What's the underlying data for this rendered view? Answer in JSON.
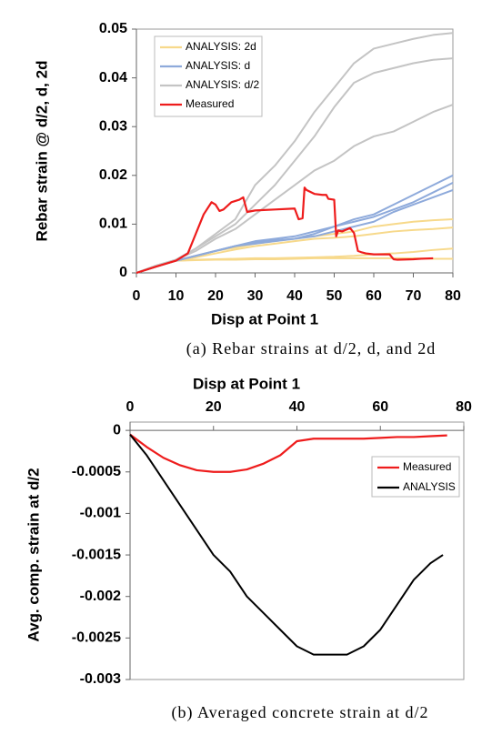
{
  "chart_data": [
    {
      "type": "line",
      "xlabel": "Disp at Point 1",
      "ylabel": "Rebar strain @ d/2, d, 2d",
      "caption": "(a) Rebar strains at d/2, d, and 2d",
      "xlim": [
        0,
        80
      ],
      "xticks": [
        0,
        10,
        20,
        30,
        40,
        50,
        60,
        70,
        80
      ],
      "ylim": [
        0,
        0.05
      ],
      "yticks": [
        0,
        0.01,
        0.02,
        0.03,
        0.04,
        0.05
      ],
      "xaxis_position": "bottom",
      "legend": "upper-left",
      "grid": false,
      "series": [
        {
          "name": "ANALYSIS: 2d",
          "color": "#f7d98b",
          "lines": [
            {
              "x": [
                0,
                5,
                10,
                15,
                20,
                25,
                30,
                35,
                40,
                45,
                50,
                55,
                60,
                65,
                70,
                75,
                80
              ],
              "values": [
                0,
                0.0013,
                0.0025,
                0.0035,
                0.0045,
                0.0052,
                0.006,
                0.0065,
                0.007,
                0.0075,
                0.008,
                0.0085,
                0.0095,
                0.01,
                0.0105,
                0.0108,
                0.011
              ]
            },
            {
              "x": [
                0,
                5,
                10,
                15,
                20,
                25,
                30,
                35,
                40,
                45,
                50,
                55,
                60,
                65,
                70,
                75,
                80
              ],
              "values": [
                0,
                0.0013,
                0.0025,
                0.0032,
                0.004,
                0.0048,
                0.0055,
                0.006,
                0.0065,
                0.007,
                0.0072,
                0.0075,
                0.008,
                0.0085,
                0.0088,
                0.009,
                0.0093
              ]
            },
            {
              "x": [
                0,
                5,
                10,
                15,
                20,
                25,
                30,
                35,
                40,
                45,
                50,
                55,
                60,
                65,
                70,
                75,
                80
              ],
              "values": [
                0,
                0.0013,
                0.0025,
                0.0027,
                0.0028,
                0.0029,
                0.003,
                0.003,
                0.0031,
                0.0032,
                0.0033,
                0.0035,
                0.0038,
                0.004,
                0.0043,
                0.0047,
                0.005
              ]
            },
            {
              "x": [
                0,
                5,
                10,
                15,
                20,
                25,
                30,
                35,
                40,
                45,
                50,
                55,
                60,
                65,
                70,
                75,
                80
              ],
              "values": [
                0,
                0.0013,
                0.0025,
                0.0026,
                0.0027,
                0.0027,
                0.0028,
                0.0028,
                0.0029,
                0.003,
                0.003,
                0.003,
                0.003,
                0.003,
                0.003,
                0.0029,
                0.0029
              ]
            }
          ]
        },
        {
          "name": "ANALYSIS: d",
          "color": "#8eaadb",
          "lines": [
            {
              "x": [
                0,
                5,
                10,
                15,
                20,
                25,
                30,
                35,
                40,
                45,
                50,
                55,
                60,
                65,
                70,
                75,
                80
              ],
              "values": [
                0,
                0.0013,
                0.0025,
                0.0035,
                0.0045,
                0.0055,
                0.006,
                0.0065,
                0.007,
                0.008,
                0.0095,
                0.011,
                0.012,
                0.014,
                0.016,
                0.018,
                0.02
              ]
            },
            {
              "x": [
                0,
                5,
                10,
                15,
                20,
                25,
                30,
                35,
                40,
                45,
                50,
                55,
                60,
                65,
                70,
                75,
                80
              ],
              "values": [
                0,
                0.0013,
                0.0025,
                0.0035,
                0.0045,
                0.0055,
                0.0065,
                0.007,
                0.0075,
                0.0085,
                0.0095,
                0.0105,
                0.0115,
                0.013,
                0.0145,
                0.0165,
                0.0185
              ]
            },
            {
              "x": [
                0,
                5,
                10,
                15,
                20,
                25,
                30,
                35,
                40,
                45,
                50,
                55,
                60,
                65,
                70,
                75,
                80
              ],
              "values": [
                0,
                0.0013,
                0.0025,
                0.0035,
                0.0045,
                0.0055,
                0.0062,
                0.0067,
                0.007,
                0.0075,
                0.0085,
                0.0095,
                0.0105,
                0.0125,
                0.014,
                0.0155,
                0.017
              ]
            }
          ]
        },
        {
          "name": "ANALYSIS: d/2",
          "color": "#c4c4c4",
          "lines": [
            {
              "x": [
                0,
                5,
                10,
                15,
                20,
                25,
                30,
                35,
                40,
                45,
                50,
                55,
                60,
                65,
                70,
                75,
                80
              ],
              "values": [
                0,
                0.0015,
                0.0027,
                0.005,
                0.008,
                0.011,
                0.018,
                0.022,
                0.027,
                0.033,
                0.038,
                0.043,
                0.046,
                0.047,
                0.048,
                0.0488,
                0.0492
              ]
            },
            {
              "x": [
                0,
                5,
                10,
                15,
                20,
                25,
                30,
                35,
                40,
                45,
                50,
                55,
                60,
                65,
                70,
                75,
                80
              ],
              "values": [
                0,
                0.0015,
                0.0027,
                0.005,
                0.0075,
                0.01,
                0.014,
                0.018,
                0.023,
                0.028,
                0.034,
                0.039,
                0.041,
                0.042,
                0.043,
                0.0437,
                0.044
              ]
            },
            {
              "x": [
                0,
                5,
                10,
                15,
                20,
                25,
                30,
                35,
                40,
                45,
                50,
                55,
                60,
                65,
                70,
                75,
                80
              ],
              "values": [
                0,
                0.0015,
                0.0027,
                0.0045,
                0.007,
                0.009,
                0.012,
                0.015,
                0.018,
                0.021,
                0.023,
                0.026,
                0.028,
                0.029,
                0.031,
                0.033,
                0.0345
              ]
            }
          ]
        },
        {
          "name": "Measured",
          "color": "#ee1c1c",
          "lines": [
            {
              "x": [
                0,
                5,
                10,
                13,
                15,
                17,
                19,
                20,
                21,
                22,
                24,
                26,
                27,
                28,
                30,
                35,
                40,
                41,
                42,
                42.5,
                43,
                45,
                47,
                48,
                48.5,
                50,
                50.5,
                51,
                52,
                54,
                55,
                56,
                57,
                58,
                60,
                64,
                65,
                66,
                70,
                72,
                75
              ],
              "values": [
                0,
                0.0013,
                0.0025,
                0.004,
                0.008,
                0.012,
                0.0145,
                0.014,
                0.0127,
                0.013,
                0.0145,
                0.015,
                0.0155,
                0.0125,
                0.0128,
                0.013,
                0.0132,
                0.011,
                0.0112,
                0.0175,
                0.017,
                0.0162,
                0.016,
                0.016,
                0.0152,
                0.015,
                0.0075,
                0.0087,
                0.0085,
                0.0092,
                0.0082,
                0.0045,
                0.0042,
                0.004,
                0.0038,
                0.0038,
                0.0028,
                0.0027,
                0.0028,
                0.0029,
                0.003
              ]
            }
          ]
        }
      ]
    },
    {
      "type": "line",
      "xlabel": "Disp at Point 1",
      "ylabel": "Avg. comp. strain at d/2",
      "caption": "(b) Averaged concrete strain at d/2",
      "xlim": [
        0,
        80
      ],
      "xticks": [
        0,
        20,
        40,
        60,
        80
      ],
      "ylim": [
        -0.003,
        0.0001
      ],
      "yticks": [
        -0.003,
        -0.0025,
        -0.002,
        -0.0015,
        -0.001,
        -0.0005,
        0
      ],
      "xaxis_position": "top",
      "legend": "right",
      "grid": false,
      "series": [
        {
          "name": "Measured",
          "color": "#ee1c1c",
          "lines": [
            {
              "x": [
                0,
                4,
                8,
                12,
                16,
                20,
                24,
                28,
                32,
                36,
                40,
                44,
                48,
                52,
                56,
                60,
                64,
                68,
                72,
                76
              ],
              "values": [
                -5e-05,
                -0.0002,
                -0.00033,
                -0.00042,
                -0.00048,
                -0.0005,
                -0.0005,
                -0.00047,
                -0.0004,
                -0.0003,
                -0.00013,
                -0.0001,
                -0.0001,
                -0.0001,
                -0.0001,
                -9e-05,
                -8e-05,
                -8e-05,
                -7e-05,
                -6e-05
              ]
            }
          ]
        },
        {
          "name": "ANALYSIS",
          "color": "#000000",
          "lines": [
            {
              "x": [
                0,
                4,
                8,
                12,
                16,
                20,
                24,
                28,
                32,
                36,
                40,
                44,
                48,
                52,
                56,
                60,
                64,
                68,
                72,
                75
              ],
              "values": [
                -5e-05,
                -0.0003,
                -0.0006,
                -0.0009,
                -0.0012,
                -0.0015,
                -0.0017,
                -0.002,
                -0.0022,
                -0.0024,
                -0.0026,
                -0.0027,
                -0.0027,
                -0.0027,
                -0.0026,
                -0.0024,
                -0.0021,
                -0.0018,
                -0.0016,
                -0.0015
              ]
            }
          ]
        }
      ]
    }
  ]
}
